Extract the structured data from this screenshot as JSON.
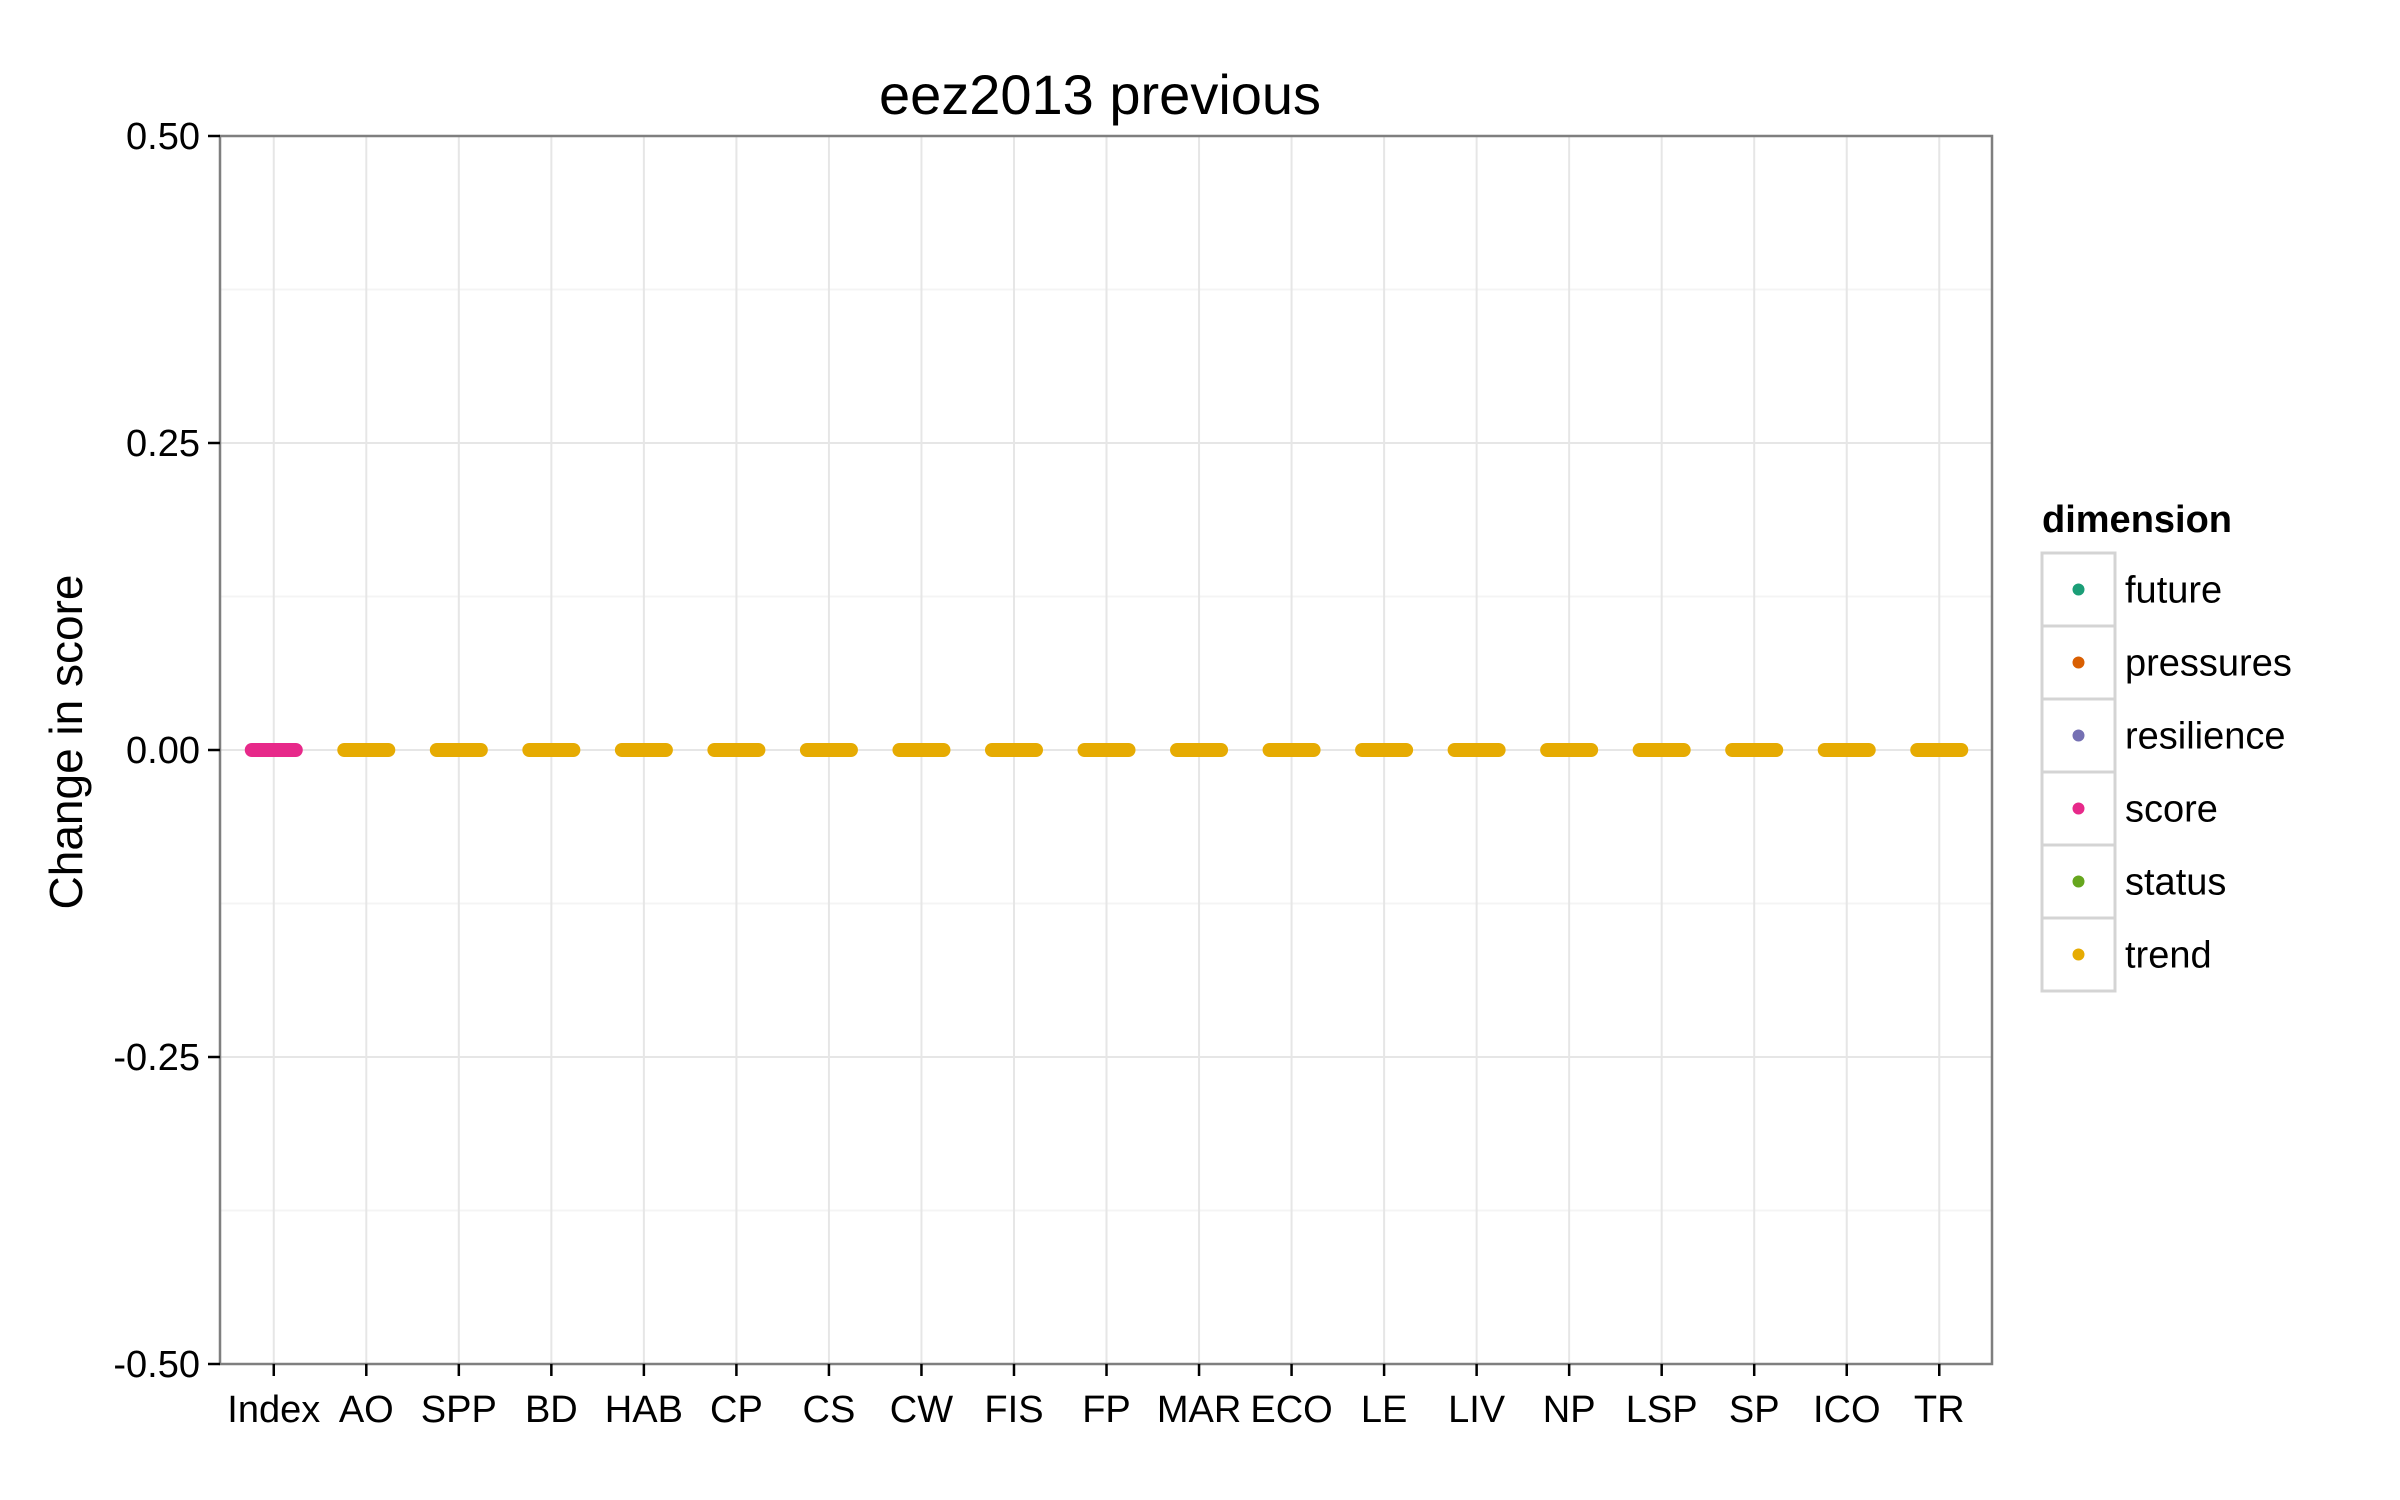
{
  "chart_data": {
    "type": "scatter",
    "title": "eez2013 previous",
    "xlabel": "",
    "ylabel": "Change in score",
    "ylim": [
      -0.5,
      0.5
    ],
    "yticks": [
      "-0.50",
      "-0.25",
      "0.00",
      "0.25",
      "0.50"
    ],
    "categories": [
      "Index",
      "AO",
      "SPP",
      "BD",
      "HAB",
      "CP",
      "CS",
      "CW",
      "FIS",
      "FP",
      "MAR",
      "ECO",
      "LE",
      "LIV",
      "NP",
      "LSP",
      "SP",
      "ICO",
      "TR"
    ],
    "grid": true,
    "legend": {
      "title": "dimension",
      "position": "right",
      "entries": [
        {
          "name": "future",
          "color": "#1B9E77"
        },
        {
          "name": "pressures",
          "color": "#D95F02"
        },
        {
          "name": "resilience",
          "color": "#7570B3"
        },
        {
          "name": "score",
          "color": "#E7298A"
        },
        {
          "name": "status",
          "color": "#66A61E"
        },
        {
          "name": "trend",
          "color": "#E6AB02"
        }
      ]
    },
    "series": [
      {
        "name": "score",
        "color": "#E7298A",
        "values": [
          0,
          null,
          null,
          null,
          null,
          null,
          null,
          null,
          null,
          null,
          null,
          null,
          null,
          null,
          null,
          null,
          null,
          null,
          null
        ]
      },
      {
        "name": "trend",
        "color": "#E6AB02",
        "values": [
          null,
          0,
          0,
          0,
          0,
          0,
          0,
          0,
          0,
          0,
          0,
          0,
          0,
          0,
          0,
          0,
          0,
          0,
          0
        ]
      }
    ]
  }
}
